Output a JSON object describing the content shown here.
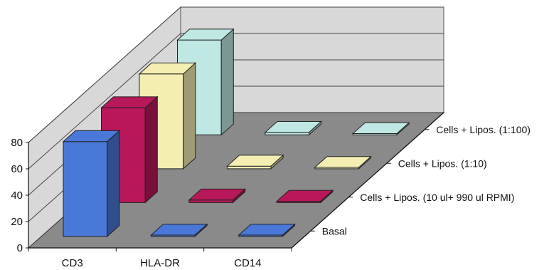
{
  "chart_data": {
    "type": "bar",
    "variant": "3d-grouped-bar",
    "categories": [
      "CD3",
      "HLA-DR",
      "CD14"
    ],
    "depth_categories": [
      "Basal",
      "Cells + Lipos. (10 ul+ 990 ul RPMI)",
      "Cells + Lipos. (1:10)",
      "Cells + Lipos. (1:100)"
    ],
    "series": [
      {
        "values": [
          72,
          1,
          1
        ],
        "color": "#4a78d8"
      },
      {
        "values": [
          72,
          2,
          1
        ],
        "color": "#b8185a"
      },
      {
        "values": [
          72,
          2,
          1
        ],
        "color": "#f4eeb2"
      },
      {
        "values": [
          72,
          2,
          1
        ],
        "color": "#bfe8e4"
      }
    ],
    "yticks": [
      "0",
      "20",
      "40",
      "60",
      "80"
    ],
    "ylim": [
      0,
      80
    ],
    "grid": true,
    "floor_color": "#8a8a8a",
    "wall_color": "#d8d8d8"
  }
}
